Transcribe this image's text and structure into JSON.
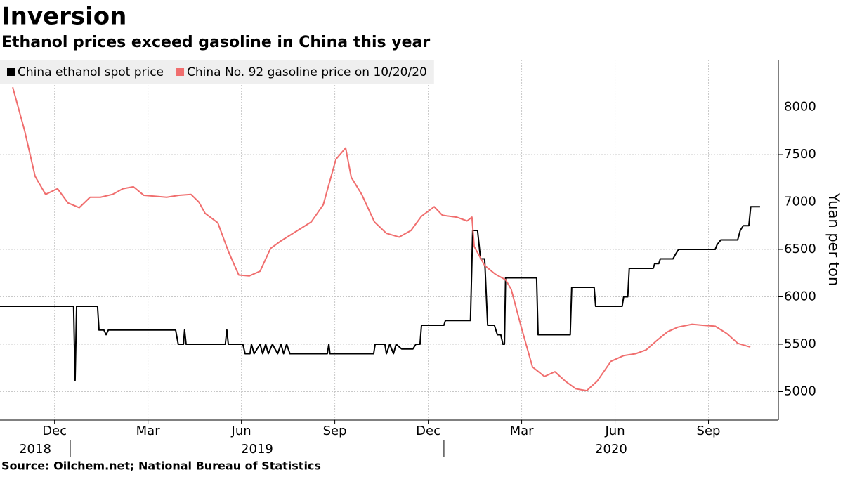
{
  "chart_data": {
    "type": "line",
    "title": "Inversion",
    "subtitle": "Ethanol prices exceed gasoline in China this year",
    "y_label": "Yuan per ton",
    "source": "Source: Oilchem.net; National Bureau of Statistics",
    "grid": true,
    "legend": "top-left",
    "xlim": [
      2018.812,
      2020.895
    ],
    "ylim": [
      4700,
      8500
    ],
    "yticks": [
      5000,
      5500,
      6000,
      6500,
      7000,
      7500,
      8000
    ],
    "xticks": [
      {
        "value": 2018.958,
        "label": "Dec"
      },
      {
        "value": 2019.208,
        "label": "Mar"
      },
      {
        "value": 2019.458,
        "label": "Jun"
      },
      {
        "value": 2019.708,
        "label": "Sep"
      },
      {
        "value": 2019.958,
        "label": "Dec"
      },
      {
        "value": 2020.208,
        "label": "Mar"
      },
      {
        "value": 2020.458,
        "label": "Jun"
      },
      {
        "value": 2020.708,
        "label": "Sep"
      }
    ],
    "x_years": [
      2018,
      2019,
      2020
    ],
    "series": [
      {
        "name": "China ethanol spot price",
        "color": "#000000",
        "x": [
          2018.812,
          2019.009,
          2019.013,
          2019.017,
          2019.073,
          2019.077,
          2019.09,
          2019.096,
          2019.102,
          2019.282,
          2019.289,
          2019.303,
          2019.306,
          2019.31,
          2019.415,
          2019.419,
          2019.423,
          2019.462,
          2019.468,
          2019.481,
          2019.485,
          2019.492,
          2019.508,
          2019.515,
          2019.523,
          2019.53,
          2019.541,
          2019.555,
          2019.564,
          2019.571,
          2019.579,
          2019.588,
          2019.688,
          2019.692,
          2019.695,
          2019.812,
          2019.816,
          2019.842,
          2019.846,
          2019.855,
          2019.865,
          2019.872,
          2019.887,
          2019.917,
          2019.925,
          2019.936,
          2019.94,
          2020.0,
          2020.004,
          2020.071,
          2020.077,
          2020.09,
          2020.098,
          2020.109,
          2020.117,
          2020.135,
          2020.143,
          2020.152,
          2020.158,
          2020.162,
          2020.165,
          2020.248,
          2020.252,
          2020.338,
          2020.342,
          2020.402,
          2020.406,
          2020.477,
          2020.481,
          2020.492,
          2020.496,
          2020.56,
          2020.564,
          2020.575,
          2020.579,
          2020.613,
          2020.62,
          2020.628,
          2020.726,
          2020.731,
          2020.741,
          2020.786,
          2020.793,
          2020.801,
          2020.816,
          2020.821,
          2020.846
        ],
        "values": [
          5900,
          5900,
          5120,
          5900,
          5900,
          5650,
          5650,
          5600,
          5650,
          5650,
          5500,
          5500,
          5650,
          5500,
          5500,
          5650,
          5500,
          5500,
          5400,
          5400,
          5500,
          5400,
          5500,
          5400,
          5500,
          5400,
          5500,
          5400,
          5500,
          5400,
          5500,
          5400,
          5400,
          5500,
          5400,
          5400,
          5500,
          5500,
          5400,
          5500,
          5400,
          5500,
          5450,
          5450,
          5500,
          5500,
          5700,
          5700,
          5750,
          5750,
          6700,
          6700,
          6400,
          6400,
          5700,
          5700,
          5600,
          5600,
          5500,
          5500,
          6200,
          6200,
          5600,
          5600,
          6100,
          6100,
          5900,
          5900,
          6000,
          6000,
          6300,
          6300,
          6350,
          6350,
          6400,
          6400,
          6450,
          6500,
          6500,
          6550,
          6600,
          6600,
          6700,
          6750,
          6750,
          6950,
          6950
        ]
      },
      {
        "name": "China No. 92 gasoline price on 10/20/20",
        "color": "#f06e6e",
        "x": [
          2018.846,
          2018.878,
          2018.906,
          2018.934,
          2018.966,
          2018.994,
          2019.024,
          2019.053,
          2019.081,
          2019.113,
          2019.141,
          2019.169,
          2019.197,
          2019.258,
          2019.291,
          2019.323,
          2019.344,
          2019.361,
          2019.395,
          2019.423,
          2019.451,
          2019.479,
          2019.508,
          2019.536,
          2019.564,
          2019.645,
          2019.677,
          2019.711,
          2019.737,
          2019.752,
          2019.78,
          2019.814,
          2019.846,
          2019.88,
          2019.912,
          2019.94,
          2019.974,
          2019.996,
          2020.034,
          2020.062,
          2020.075,
          2020.081,
          2020.109,
          2020.137,
          2020.165,
          2020.18,
          2020.207,
          2020.237,
          2020.269,
          2020.297,
          2020.325,
          2020.353,
          2020.382,
          2020.41,
          2020.447,
          2020.481,
          2020.513,
          2020.541,
          2020.57,
          2020.598,
          2020.626,
          2020.664,
          2020.692,
          2020.726,
          2020.758,
          2020.786,
          2020.82
        ],
        "values": [
          8210,
          7750,
          7270,
          7080,
          7140,
          6990,
          6940,
          7050,
          7050,
          7080,
          7140,
          7160,
          7070,
          7050,
          7070,
          7080,
          7000,
          6880,
          6780,
          6480,
          6230,
          6220,
          6270,
          6510,
          6590,
          6790,
          6970,
          7450,
          7570,
          7260,
          7080,
          6790,
          6670,
          6630,
          6700,
          6850,
          6950,
          6860,
          6840,
          6800,
          6840,
          6530,
          6330,
          6240,
          6180,
          6080,
          5680,
          5260,
          5160,
          5210,
          5110,
          5030,
          5010,
          5110,
          5320,
          5380,
          5400,
          5440,
          5540,
          5630,
          5680,
          5710,
          5700,
          5690,
          5610,
          5510,
          5470
        ]
      }
    ]
  }
}
